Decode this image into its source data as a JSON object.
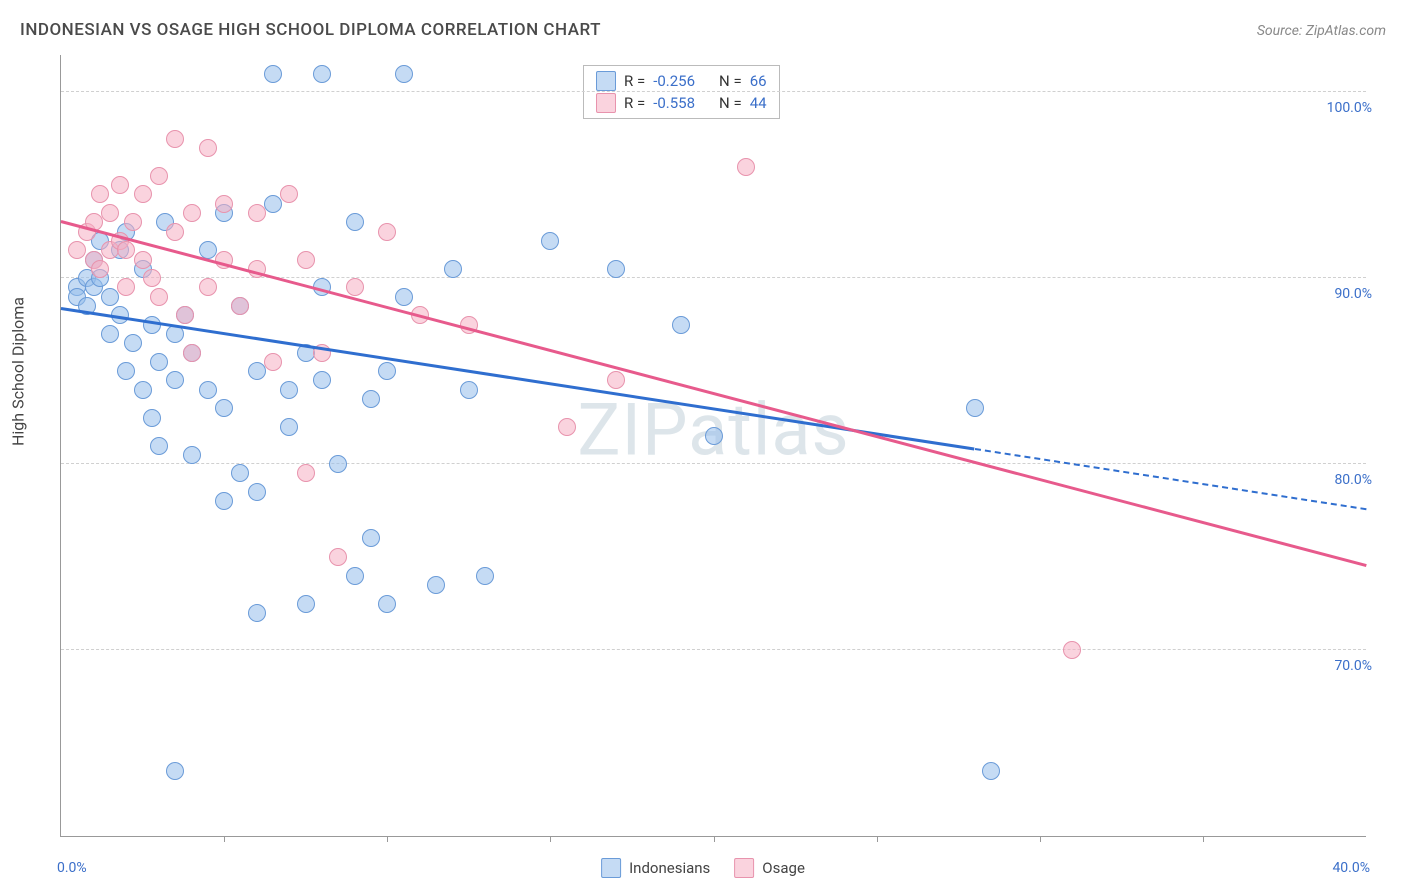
{
  "title": "INDONESIAN VS OSAGE HIGH SCHOOL DIPLOMA CORRELATION CHART",
  "source_label": "Source: ZipAtlas.com",
  "watermark": "ZIPatlas",
  "axes": {
    "y_title": "High School Diploma",
    "x_min": 0.0,
    "x_max": 40.0,
    "y_min": 60.0,
    "y_max": 102.0,
    "y_ticks": [
      70.0,
      80.0,
      90.0,
      100.0
    ],
    "y_tick_labels": [
      "70.0%",
      "80.0%",
      "90.0%",
      "100.0%"
    ],
    "x_ticks": [
      0.0,
      40.0
    ],
    "x_tick_labels": [
      "0.0%",
      "40.0%"
    ],
    "x_minor_ticks": [
      5.0,
      10.0,
      15.0,
      20.0,
      25.0,
      30.0,
      35.0
    ],
    "grid_color": "#d0d0d0",
    "axis_text_color": "#3b6fc9"
  },
  "series": [
    {
      "name": "Indonesians",
      "color_fill": "rgba(150,190,235,0.55)",
      "color_stroke": "#6a9bd8",
      "trend_color": "#2f6ecf",
      "r": "-0.256",
      "n": "66",
      "trend": {
        "x1": 0.0,
        "y1": 88.3,
        "x2": 40.0,
        "y2": 77.5,
        "dashed_from_x": 28.0
      },
      "marker_radius": 9,
      "points": [
        [
          0.5,
          89.5
        ],
        [
          0.5,
          89.0
        ],
        [
          0.8,
          90.0
        ],
        [
          0.8,
          88.5
        ],
        [
          1.0,
          89.5
        ],
        [
          1.0,
          91.0
        ],
        [
          1.2,
          92.0
        ],
        [
          1.2,
          90.0
        ],
        [
          1.5,
          89.0
        ],
        [
          1.5,
          87.0
        ],
        [
          1.8,
          88.0
        ],
        [
          1.8,
          91.5
        ],
        [
          2.0,
          85.0
        ],
        [
          2.0,
          92.5
        ],
        [
          2.2,
          86.5
        ],
        [
          2.5,
          90.5
        ],
        [
          2.5,
          84.0
        ],
        [
          2.8,
          87.5
        ],
        [
          2.8,
          82.5
        ],
        [
          3.0,
          85.5
        ],
        [
          3.0,
          81.0
        ],
        [
          3.2,
          93.0
        ],
        [
          3.5,
          84.5
        ],
        [
          3.5,
          87.0
        ],
        [
          3.5,
          63.5
        ],
        [
          3.8,
          88.0
        ],
        [
          4.0,
          80.5
        ],
        [
          4.0,
          86.0
        ],
        [
          4.5,
          84.0
        ],
        [
          4.5,
          91.5
        ],
        [
          5.0,
          83.0
        ],
        [
          5.0,
          78.0
        ],
        [
          5.0,
          93.5
        ],
        [
          5.5,
          88.5
        ],
        [
          5.5,
          79.5
        ],
        [
          6.0,
          78.5
        ],
        [
          6.0,
          85.0
        ],
        [
          6.0,
          72.0
        ],
        [
          6.5,
          101.0
        ],
        [
          6.5,
          94.0
        ],
        [
          7.0,
          82.0
        ],
        [
          7.0,
          84.0
        ],
        [
          7.5,
          86.0
        ],
        [
          7.5,
          72.5
        ],
        [
          8.0,
          84.5
        ],
        [
          8.0,
          89.5
        ],
        [
          8.0,
          101.0
        ],
        [
          8.5,
          80.0
        ],
        [
          9.0,
          74.0
        ],
        [
          9.0,
          93.0
        ],
        [
          9.5,
          83.5
        ],
        [
          9.5,
          76.0
        ],
        [
          10.0,
          85.0
        ],
        [
          10.0,
          72.5
        ],
        [
          10.5,
          89.0
        ],
        [
          10.5,
          101.0
        ],
        [
          11.5,
          73.5
        ],
        [
          12.0,
          90.5
        ],
        [
          12.5,
          84.0
        ],
        [
          13.0,
          74.0
        ],
        [
          15.0,
          92.0
        ],
        [
          17.0,
          90.5
        ],
        [
          19.0,
          87.5
        ],
        [
          20.0,
          81.5
        ],
        [
          28.0,
          83.0
        ],
        [
          28.5,
          63.5
        ]
      ]
    },
    {
      "name": "Osage",
      "color_fill": "rgba(245,175,195,0.55)",
      "color_stroke": "#e893ad",
      "trend_color": "#e75a8c",
      "r": "-0.558",
      "n": "44",
      "trend": {
        "x1": 0.0,
        "y1": 93.0,
        "x2": 40.0,
        "y2": 74.5,
        "dashed_from_x": 40.0
      },
      "marker_radius": 9,
      "points": [
        [
          0.5,
          91.5
        ],
        [
          0.8,
          92.5
        ],
        [
          1.0,
          93.0
        ],
        [
          1.0,
          91.0
        ],
        [
          1.2,
          94.5
        ],
        [
          1.2,
          90.5
        ],
        [
          1.5,
          93.5
        ],
        [
          1.5,
          91.5
        ],
        [
          1.8,
          95.0
        ],
        [
          1.8,
          92.0
        ],
        [
          2.0,
          91.5
        ],
        [
          2.0,
          89.5
        ],
        [
          2.2,
          93.0
        ],
        [
          2.5,
          94.5
        ],
        [
          2.5,
          91.0
        ],
        [
          2.8,
          90.0
        ],
        [
          3.0,
          89.0
        ],
        [
          3.0,
          95.5
        ],
        [
          3.5,
          92.5
        ],
        [
          3.5,
          97.5
        ],
        [
          3.8,
          88.0
        ],
        [
          4.0,
          93.5
        ],
        [
          4.0,
          86.0
        ],
        [
          4.5,
          89.5
        ],
        [
          4.5,
          97.0
        ],
        [
          5.0,
          91.0
        ],
        [
          5.0,
          94.0
        ],
        [
          5.5,
          88.5
        ],
        [
          6.0,
          93.5
        ],
        [
          6.0,
          90.5
        ],
        [
          6.5,
          85.5
        ],
        [
          7.0,
          94.5
        ],
        [
          7.5,
          79.5
        ],
        [
          7.5,
          91.0
        ],
        [
          8.0,
          86.0
        ],
        [
          8.5,
          75.0
        ],
        [
          9.0,
          89.5
        ],
        [
          10.0,
          92.5
        ],
        [
          11.0,
          88.0
        ],
        [
          12.5,
          87.5
        ],
        [
          15.5,
          82.0
        ],
        [
          17.0,
          84.5
        ],
        [
          21.0,
          96.0
        ],
        [
          31.0,
          70.0
        ]
      ]
    }
  ],
  "legend": {
    "r_label": "R =",
    "n_label": "N =",
    "bottom_items": [
      "Indonesians",
      "Osage"
    ]
  }
}
